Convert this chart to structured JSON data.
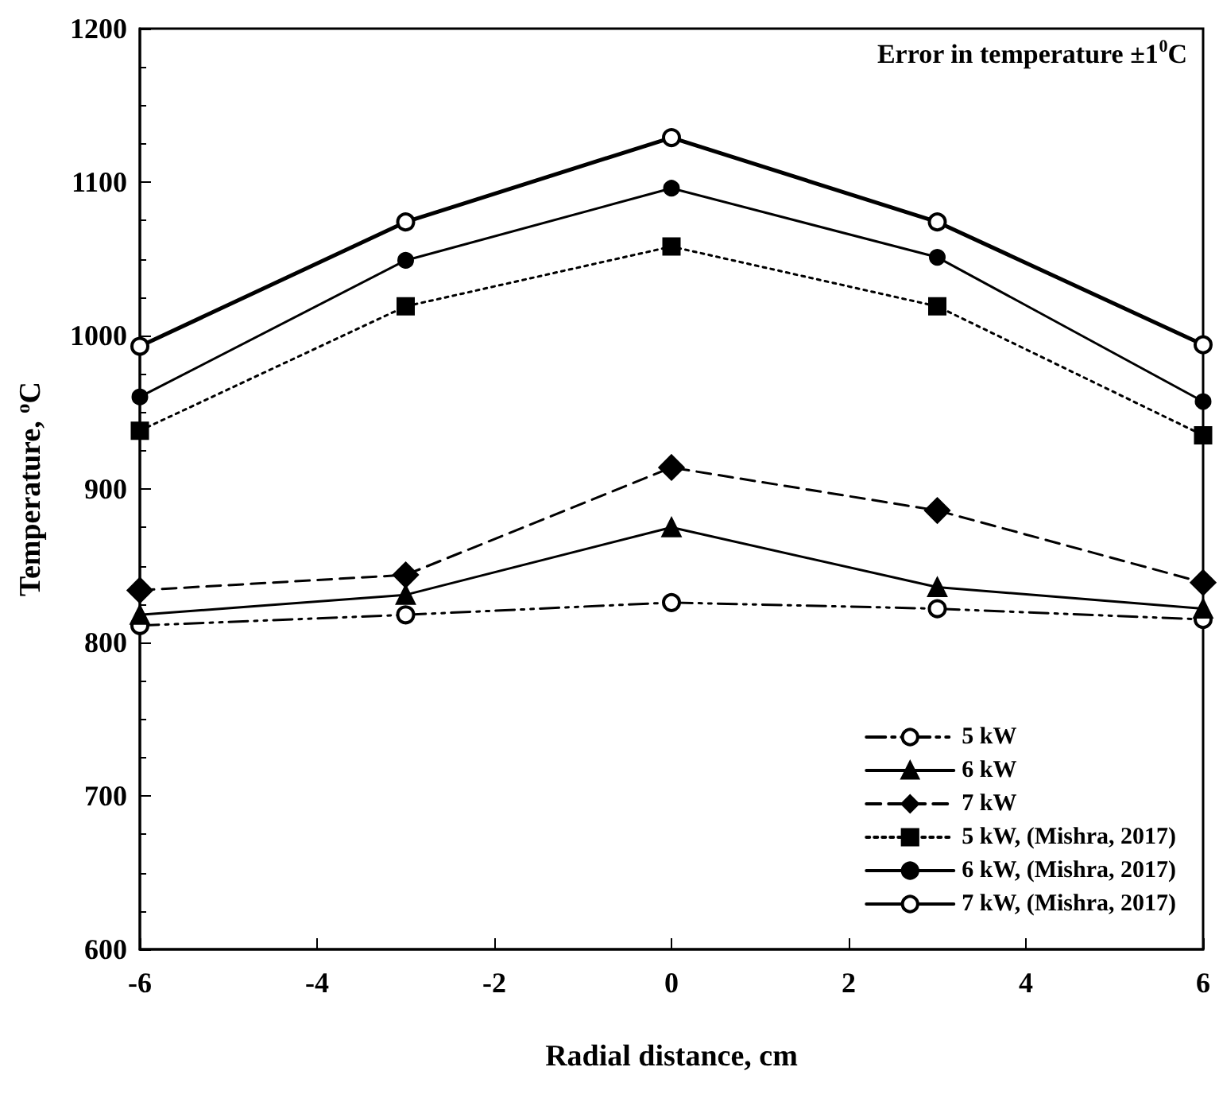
{
  "chart_data": {
    "type": "line",
    "xlabel": "Radial distance, cm",
    "ylabel": "Temperature, $^{o}$C",
    "annotations": [
      "Error in temperature ±1$^{0}$C"
    ],
    "x": [
      -6,
      -3,
      0,
      3,
      6
    ],
    "xlim": [
      -6,
      6
    ],
    "xticks": [
      -6,
      -4,
      -2,
      0,
      2,
      4,
      6
    ],
    "ylim": [
      600,
      1200
    ],
    "yticks": [
      600,
      700,
      800,
      900,
      1000,
      1100,
      1200
    ],
    "grid": false,
    "legend": "bottom right",
    "series": [
      {
        "name": "5 kW",
        "color": "#000000",
        "marker": "open_circle",
        "line_style": "dashdot",
        "values": [
          811,
          818,
          826,
          822,
          815
        ]
      },
      {
        "name": "6 kW",
        "color": "#000000",
        "marker": "triangle",
        "line_style": "solid",
        "values": [
          818,
          831,
          875,
          836,
          822
        ]
      },
      {
        "name": "7 kW",
        "color": "#000000",
        "marker": "diamond",
        "line_style": "dashed",
        "values": [
          834,
          844,
          914,
          886,
          839
        ]
      },
      {
        "name": "5 kW, (Mishra, 2017)",
        "color": "#000000",
        "marker": "square",
        "line_style": "dotted",
        "values": [
          938,
          1019,
          1058,
          1019,
          935
        ]
      },
      {
        "name": "6 kW, (Mishra, 2017)",
        "color": "#000000",
        "marker": "circle",
        "line_style": "solid",
        "values": [
          960,
          1049,
          1096,
          1051,
          957
        ]
      },
      {
        "name": "7 kW, (Mishra, 2017)",
        "color": "#000000",
        "marker": "open_circle",
        "line_style": "solid",
        "values": [
          993,
          1074,
          1129,
          1074,
          994
        ]
      }
    ]
  }
}
